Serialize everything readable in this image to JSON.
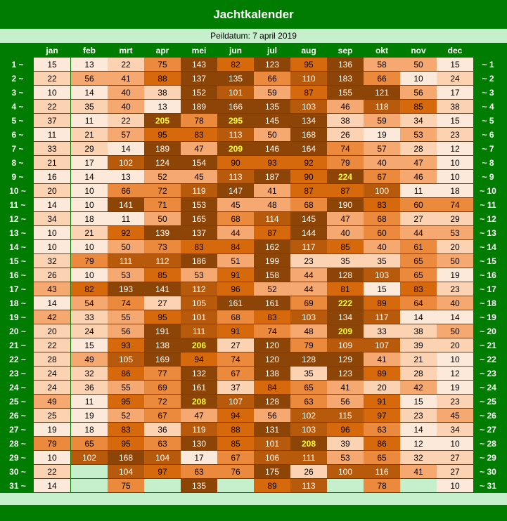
{
  "title": "Jachtkalender",
  "peildatum": "Peildatum: 7 april 2019",
  "months": [
    "jan",
    "feb",
    "mrt",
    "apr",
    "mei",
    "jun",
    "jul",
    "aug",
    "sep",
    "okt",
    "nov",
    "dec"
  ],
  "row_labels_left": [
    "1 ~",
    "2 ~",
    "3 ~",
    "4 ~",
    "5 ~",
    "6 ~",
    "7 ~",
    "8 ~",
    "9 ~",
    "10 ~",
    "11 ~",
    "12 ~",
    "13 ~",
    "14 ~",
    "15 ~",
    "16 ~",
    "17 ~",
    "18 ~",
    "19 ~",
    "20 ~",
    "21 ~",
    "22 ~",
    "23 ~",
    "24 ~",
    "25 ~",
    "26 ~",
    "27 ~",
    "28 ~",
    "29 ~",
    "30 ~",
    "31 ~"
  ],
  "row_labels_right": [
    "~ 1",
    "~ 2",
    "~ 3",
    "~ 4",
    "~ 5",
    "~ 6",
    "~ 7",
    "~ 8",
    "~ 9",
    "~ 10",
    "~ 11",
    "~ 12",
    "~ 13",
    "~ 14",
    "~ 15",
    "~ 16",
    "~ 17",
    "~ 18",
    "~ 19",
    "~ 20",
    "~ 21",
    "~ 22",
    "~ 23",
    "~ 24",
    "~ 25",
    "~ 26",
    "~ 27",
    "~ 28",
    "~ 29",
    "~ 30",
    "~ 31"
  ],
  "values": [
    [
      15,
      13,
      22,
      75,
      143,
      82,
      123,
      95,
      136,
      58,
      50,
      15
    ],
    [
      22,
      56,
      41,
      88,
      137,
      135,
      66,
      110,
      183,
      66,
      10,
      24
    ],
    [
      10,
      14,
      40,
      38,
      152,
      101,
      59,
      87,
      155,
      121,
      56,
      17
    ],
    [
      22,
      35,
      40,
      13,
      189,
      166,
      135,
      103,
      46,
      118,
      85,
      38
    ],
    [
      37,
      11,
      22,
      205,
      78,
      295,
      145,
      134,
      38,
      59,
      34,
      15
    ],
    [
      11,
      21,
      57,
      95,
      83,
      113,
      50,
      168,
      26,
      19,
      53,
      23
    ],
    [
      33,
      29,
      14,
      189,
      47,
      209,
      146,
      164,
      74,
      57,
      28,
      12
    ],
    [
      21,
      17,
      102,
      124,
      154,
      90,
      93,
      92,
      79,
      40,
      47,
      10
    ],
    [
      16,
      14,
      13,
      52,
      45,
      113,
      187,
      90,
      224,
      67,
      46,
      10
    ],
    [
      20,
      10,
      66,
      72,
      119,
      147,
      41,
      87,
      87,
      100,
      11,
      18
    ],
    [
      14,
      10,
      141,
      71,
      153,
      45,
      48,
      68,
      190,
      83,
      60,
      74
    ],
    [
      34,
      18,
      11,
      50,
      165,
      68,
      114,
      145,
      47,
      68,
      27,
      29
    ],
    [
      10,
      21,
      92,
      139,
      137,
      44,
      87,
      144,
      40,
      60,
      44,
      53
    ],
    [
      10,
      10,
      50,
      73,
      83,
      84,
      162,
      117,
      85,
      40,
      61,
      20
    ],
    [
      32,
      79,
      111,
      112,
      186,
      51,
      199,
      23,
      35,
      35,
      65,
      50
    ],
    [
      26,
      10,
      53,
      85,
      53,
      91,
      158,
      44,
      128,
      103,
      65,
      19
    ],
    [
      43,
      82,
      193,
      141,
      112,
      96,
      52,
      44,
      81,
      15,
      83,
      23
    ],
    [
      14,
      54,
      74,
      27,
      105,
      161,
      161,
      69,
      222,
      89,
      64,
      40
    ],
    [
      42,
      33,
      55,
      95,
      101,
      68,
      83,
      103,
      134,
      117,
      14,
      14
    ],
    [
      20,
      24,
      56,
      191,
      111,
      91,
      74,
      48,
      209,
      33,
      38,
      50
    ],
    [
      22,
      15,
      93,
      138,
      206,
      27,
      120,
      79,
      109,
      107,
      39,
      20
    ],
    [
      28,
      49,
      105,
      169,
      94,
      74,
      120,
      128,
      129,
      41,
      21,
      10
    ],
    [
      24,
      32,
      86,
      77,
      132,
      67,
      138,
      35,
      123,
      89,
      28,
      12
    ],
    [
      24,
      36,
      55,
      69,
      161,
      37,
      84,
      65,
      41,
      20,
      42,
      19
    ],
    [
      49,
      11,
      95,
      72,
      208,
      107,
      128,
      63,
      56,
      91,
      15,
      23
    ],
    [
      25,
      19,
      52,
      67,
      47,
      94,
      56,
      102,
      115,
      97,
      23,
      45
    ],
    [
      19,
      18,
      83,
      36,
      119,
      88,
      131,
      103,
      96,
      63,
      14,
      34
    ],
    [
      79,
      65,
      95,
      63,
      130,
      85,
      101,
      208,
      39,
      86,
      12,
      10
    ],
    [
      10,
      102,
      168,
      104,
      17,
      67,
      106,
      111,
      53,
      65,
      32,
      27
    ],
    [
      22,
      null,
      104,
      97,
      63,
      76,
      175,
      26,
      100,
      116,
      41,
      27
    ],
    [
      14,
      null,
      75,
      null,
      135,
      null,
      89,
      113,
      null,
      78,
      null,
      10
    ]
  ],
  "highlighted_values": [
    {
      "day": 5,
      "month": "apr",
      "value": 205
    },
    {
      "day": 5,
      "month": "jun",
      "value": 295
    },
    {
      "day": 7,
      "month": "jun",
      "value": 209
    },
    {
      "day": 9,
      "month": "sep",
      "value": 224
    },
    {
      "day": 18,
      "month": "sep",
      "value": 222
    },
    {
      "day": 20,
      "month": "sep",
      "value": 209
    },
    {
      "day": 21,
      "month": "mei",
      "value": 206
    },
    {
      "day": 25,
      "month": "mei",
      "value": 208
    },
    {
      "day": 28,
      "month": "aug",
      "value": 208
    }
  ],
  "colors": {
    "frame_green": "#007d00",
    "light_green": "#c6efcc",
    "highlight_text": "#ffff33",
    "scale": [
      "#fde9d9",
      "#fbd3b3",
      "#f5a970",
      "#eb8a3c",
      "#d7690d",
      "#b75a0c",
      "#8d4507"
    ]
  }
}
